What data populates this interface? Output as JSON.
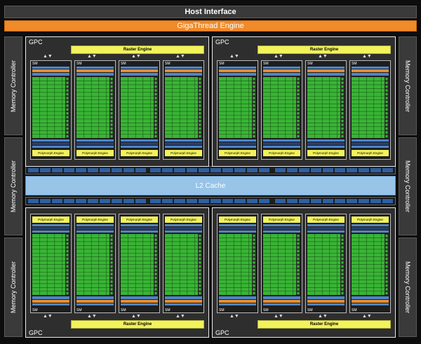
{
  "host_interface": "Host Interface",
  "gigathread_engine": "GigaThread Engine",
  "memory_controller_label": "Memory Controller",
  "l2_cache": "L2 Cache",
  "gpc_label": "GPC",
  "raster_engine_label": "Raster Engine",
  "polymorph_engine_label": "Polymorph Engine",
  "sm_label": "SM",
  "colors": {
    "background": "#0d0d0d",
    "gigathread": "#f08a2a",
    "raster_engine": "#f2f25a",
    "cuda_cores": "#39b435",
    "l2_cache": "#98c4e8",
    "cache_blue": "#4f86c6",
    "orange_strip": "#e88e32"
  }
}
